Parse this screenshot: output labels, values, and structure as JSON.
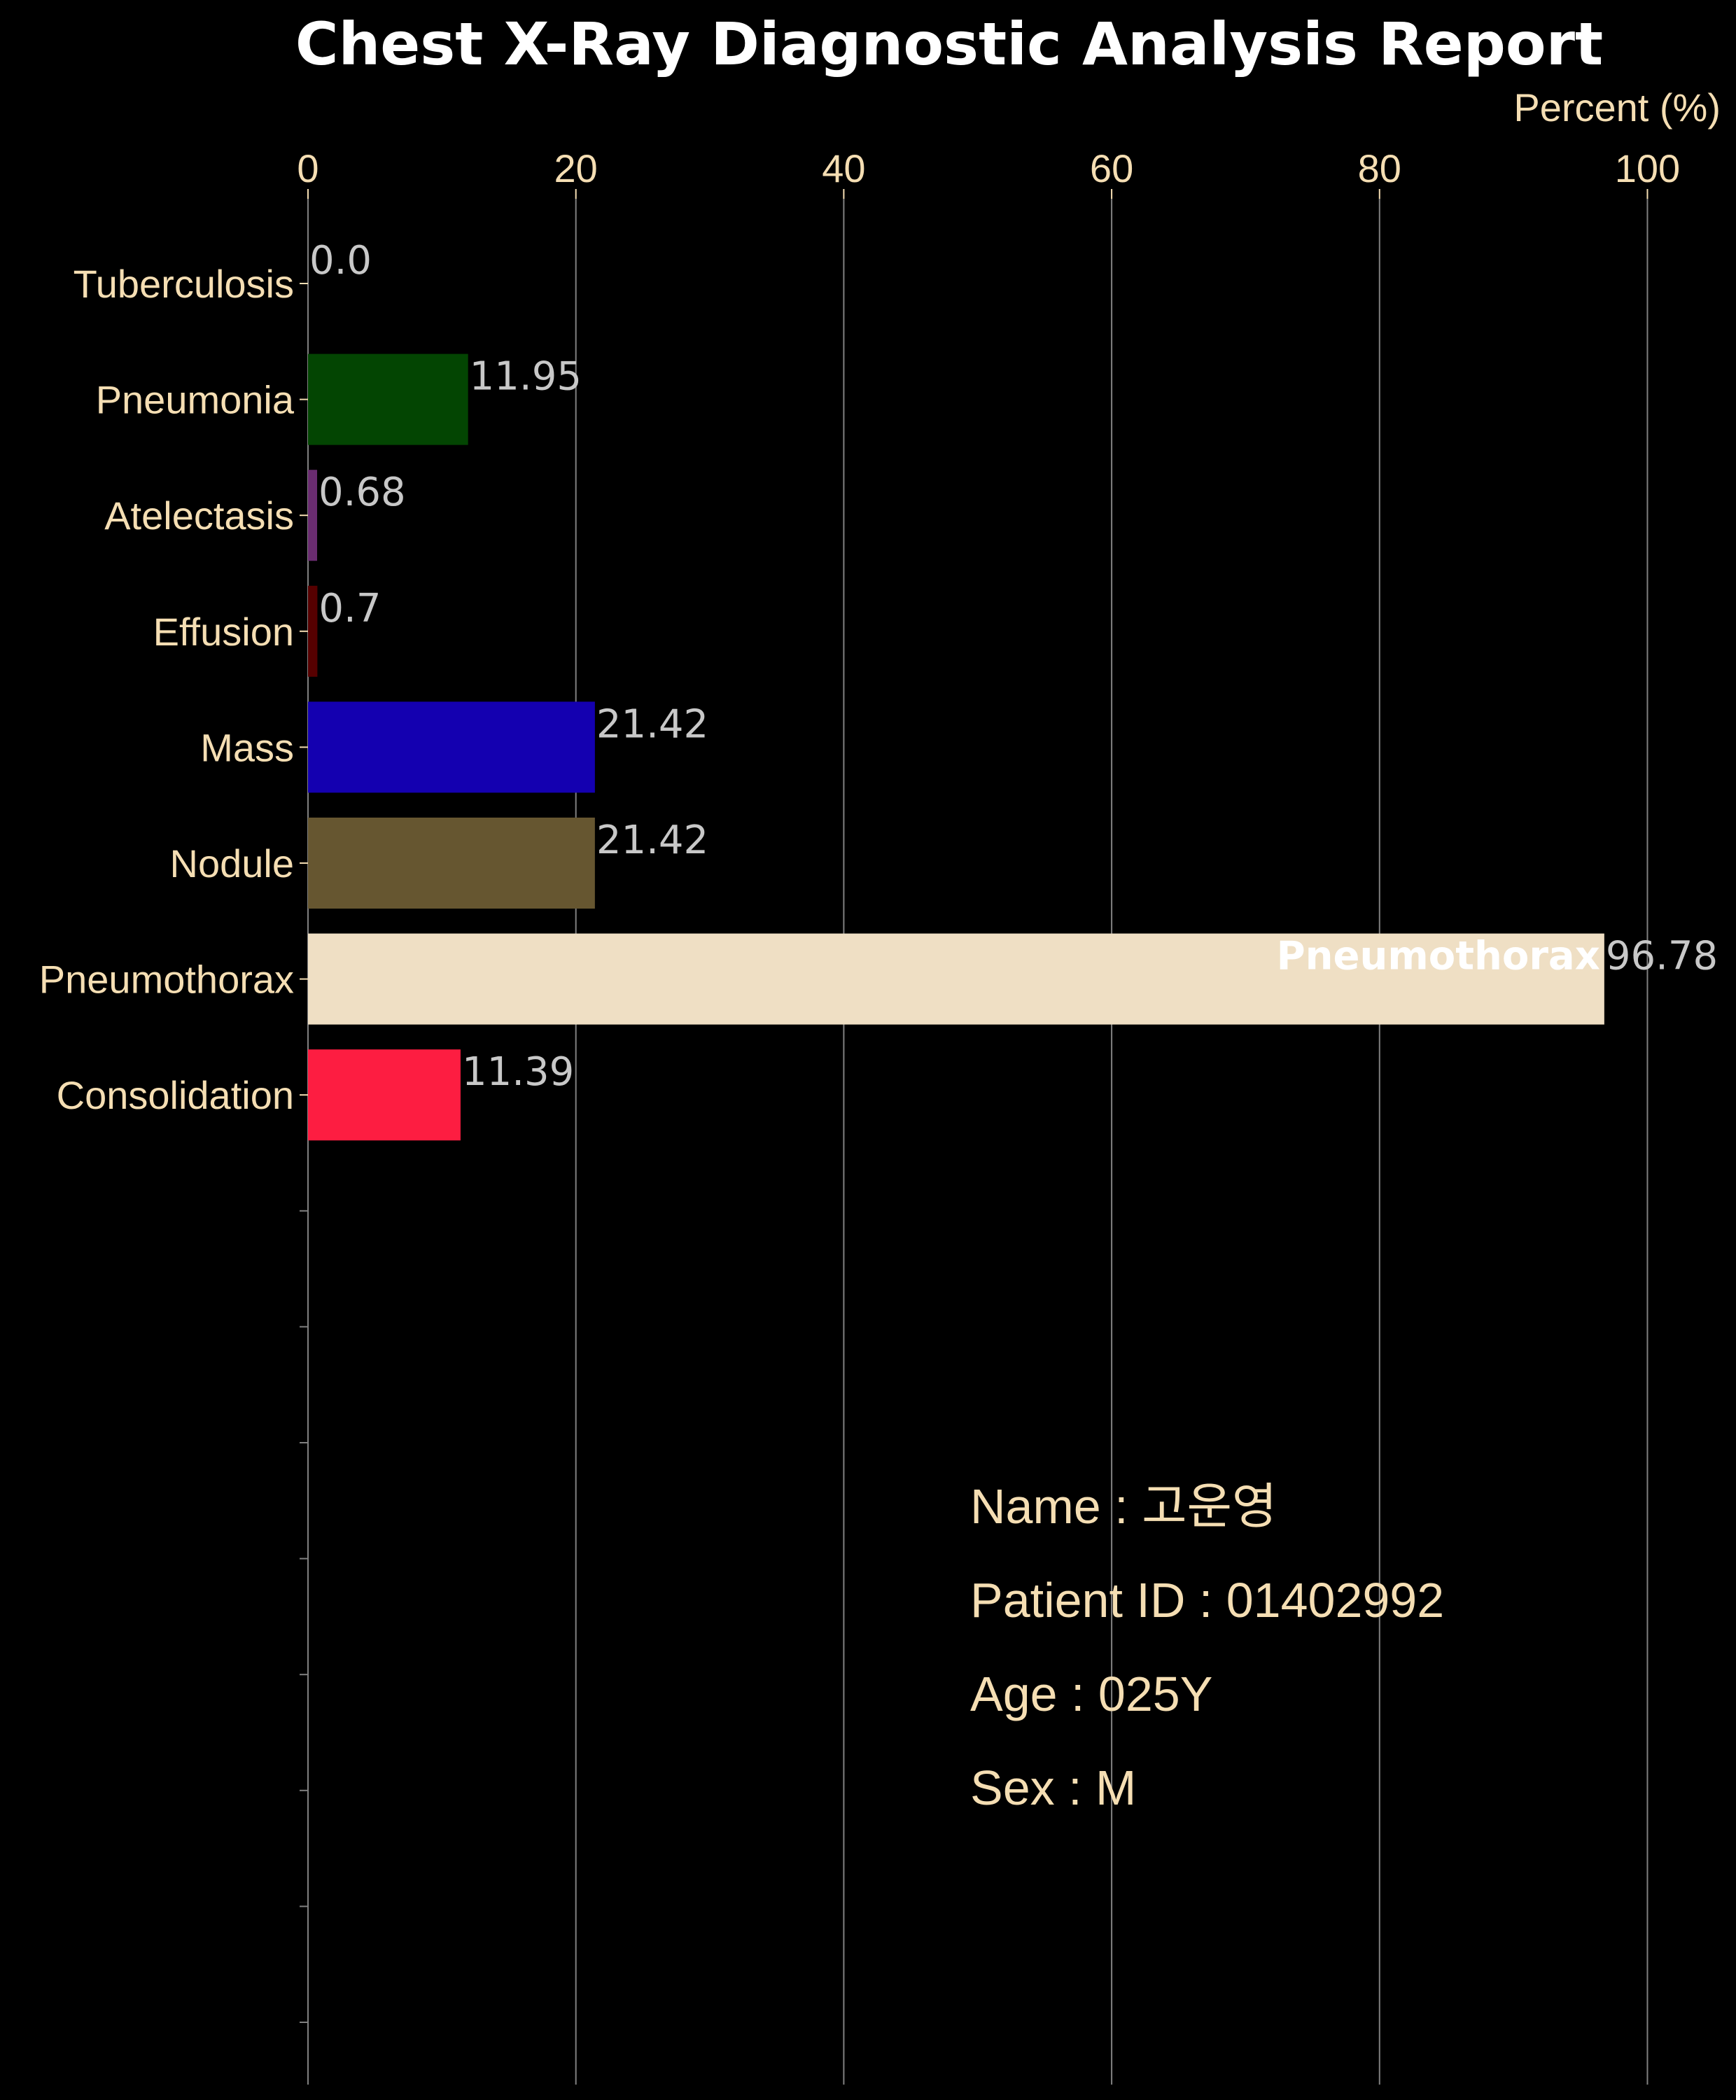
{
  "title": "Chest X-Ray Diagnostic Analysis Report",
  "colors": {
    "background": "#000000",
    "text": "#f5deb3",
    "value_text": "#c8c8c8",
    "grid": "#808080",
    "highlight_label": "#ffffff"
  },
  "chart_data": {
    "type": "bar",
    "orientation": "horizontal",
    "xlabel": "Percent (%)",
    "xlim": [
      0,
      104
    ],
    "x_ticks": [
      0,
      20,
      40,
      60,
      80,
      100
    ],
    "grid": "vertical",
    "categories": [
      "Tuberculosis",
      "Pneumonia",
      "Atelectasis",
      "Effusion",
      "Mass",
      "Nodule",
      "Pneumothorax",
      "Consolidation"
    ],
    "values": [
      0.0,
      11.95,
      0.68,
      0.7,
      21.42,
      21.42,
      96.78,
      11.39
    ],
    "value_labels": [
      "0.0",
      "11.95",
      "0.68",
      "0.7",
      "21.42",
      "21.42",
      "96.78",
      "11.39"
    ],
    "bar_colors": [
      "#1a1a1a",
      "#034502",
      "#6a2c70",
      "#560000",
      "#1400b0",
      "#665630",
      "#efdfc4",
      "#fd1d41"
    ],
    "highlight": {
      "category": "Pneumothorax",
      "label": "Pneumothorax"
    },
    "empty_slots": 8
  },
  "patient": {
    "name": "Name : 고운영",
    "id": "Patient ID : 01402992",
    "age": "Age : 025Y",
    "sex": "Sex : M"
  }
}
